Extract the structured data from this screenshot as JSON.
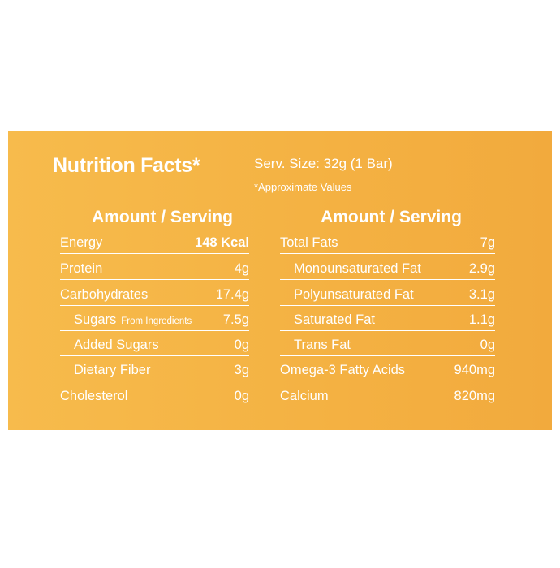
{
  "header": {
    "title": "Nutrition Facts*",
    "serving_size": "Serv. Size: 32g (1 Bar)",
    "note": "*Approximate Values"
  },
  "left": {
    "heading": "Amount / Serving",
    "rows": [
      {
        "label": "Energy",
        "value": "148 Kcal"
      },
      {
        "label": "Protein",
        "value": "4g"
      },
      {
        "label": "Carbohydrates",
        "value": "17.4g"
      },
      {
        "label": "Sugars",
        "note": "From Ingredients",
        "value": "7.5g"
      },
      {
        "label": "Added Sugars",
        "value": "0g"
      },
      {
        "label": "Dietary Fiber",
        "value": "3g"
      },
      {
        "label": "Cholesterol",
        "value": "0g"
      }
    ]
  },
  "right": {
    "heading": "Amount / Serving",
    "rows": [
      {
        "label": "Total Fats",
        "value": "7g"
      },
      {
        "label": "Monounsaturated Fat",
        "value": "2.9g"
      },
      {
        "label": "Polyunsaturated Fat",
        "value": "3.1g"
      },
      {
        "label": "Saturated Fat",
        "value": "1.1g"
      },
      {
        "label": "Trans Fat",
        "value": "0g"
      },
      {
        "label": "Omega-3 Fatty Acids",
        "value": "940mg"
      },
      {
        "label": "Calcium",
        "value": "820mg"
      }
    ]
  }
}
